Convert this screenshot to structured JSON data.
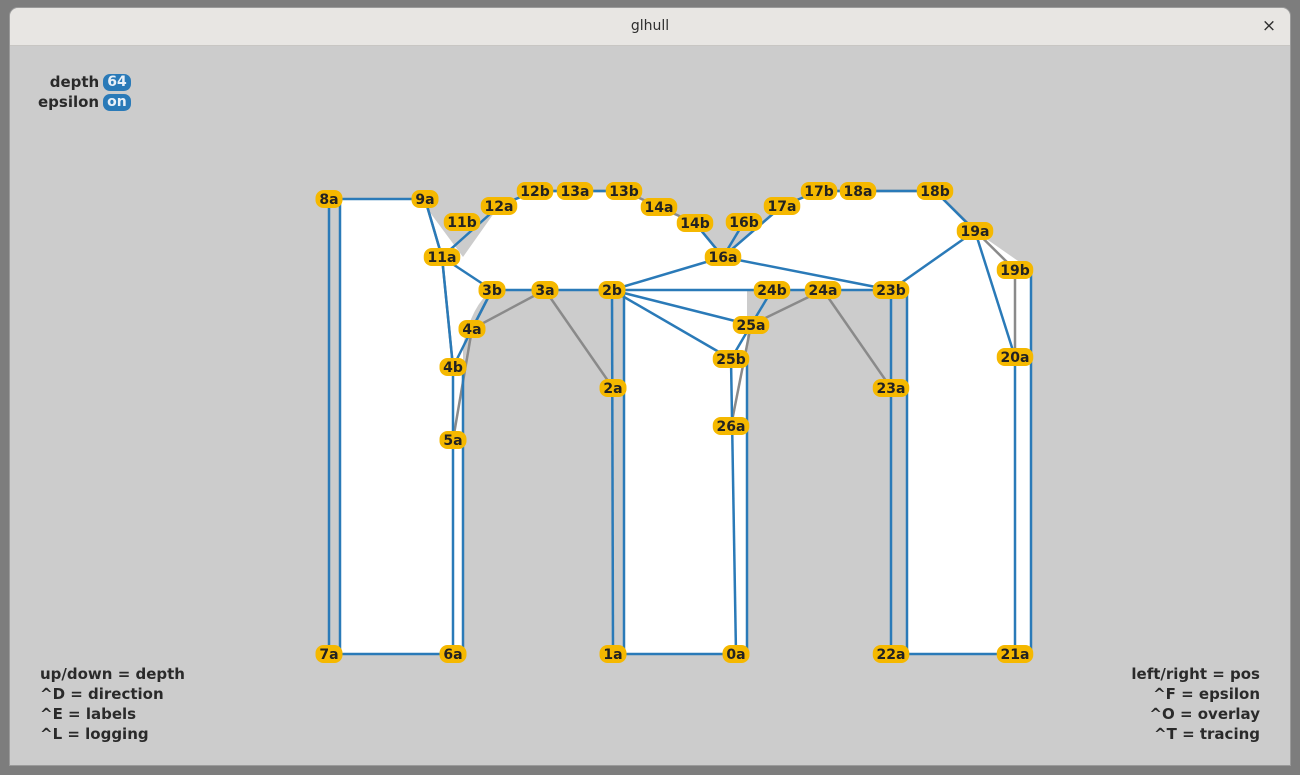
{
  "window": {
    "title": "glhull",
    "close_glyph": "×"
  },
  "status": {
    "depth_label": "depth",
    "depth_value": "64",
    "epsilon_label": "epsilon",
    "epsilon_value": "on"
  },
  "help_left": [
    "up/down = depth",
    "^D = direction",
    "^E = labels",
    "^L = logging"
  ],
  "help_right": [
    "left/right = pos",
    "^F = epsilon",
    "^O = overlay",
    "^T = tracing"
  ],
  "colors": {
    "outline": "#2a7ab8",
    "hull_edge": "#8a8a8a",
    "fill": "#ffffff",
    "label_bg": "#f5b800",
    "background": "#cccccc"
  },
  "labels": [
    "8a",
    "9a",
    "11b",
    "12a",
    "12b",
    "13a",
    "13b",
    "14a",
    "14b",
    "16b",
    "17a",
    "17b",
    "18a",
    "18b",
    "19a",
    "19b",
    "20a",
    "11a",
    "3b",
    "3a",
    "2b",
    "16a",
    "24b",
    "24a",
    "23b",
    "4a",
    "25a",
    "4b",
    "25b",
    "2a",
    "23a",
    "5a",
    "26a",
    "7a",
    "6a",
    "1a",
    "0a",
    "22a",
    "21a"
  ]
}
